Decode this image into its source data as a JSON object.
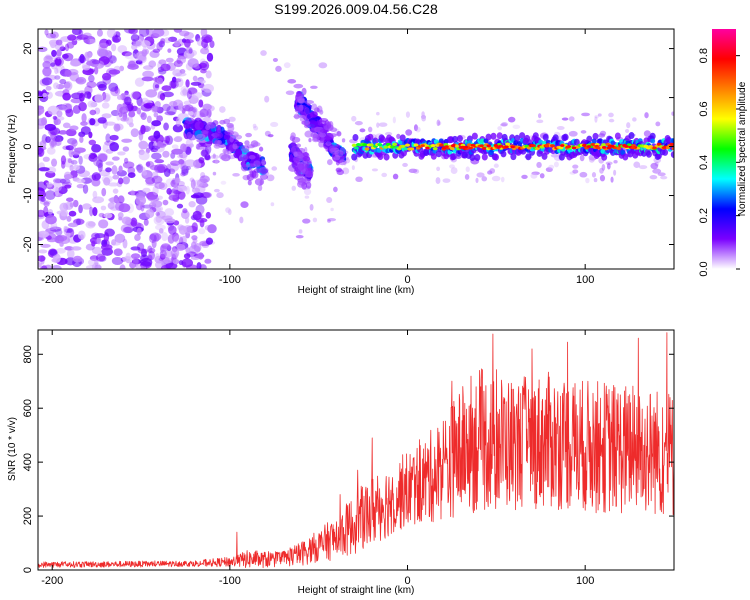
{
  "title": "S199.2026.009.04.56.C28",
  "chart_data": [
    {
      "type": "heatmap",
      "xlabel": "Height of straight line (km)",
      "ylabel": "Frequency (Hz)",
      "xlim": [
        -208,
        150
      ],
      "ylim": [
        -25,
        24
      ],
      "xticks": [
        -200,
        -100,
        0,
        100
      ],
      "yticks": [
        -20,
        -10,
        0,
        10,
        20
      ],
      "colorbar": {
        "label": "Normalized spectral amplitude",
        "range": [
          0,
          0.9
        ],
        "ticks": [
          "0.0",
          "0.2",
          "0.4",
          "0.6",
          "0.8"
        ],
        "tick_values": [
          0.0,
          0.2,
          0.4,
          0.6,
          0.8
        ],
        "colors": [
          "#ffffff",
          "#7a00ff",
          "#0000ff",
          "#00ffff",
          "#00ff00",
          "#ffff00",
          "#ff8000",
          "#ff0000",
          "#ff00a0"
        ]
      },
      "features": [
        {
          "description": "scattered noise",
          "x_range": [
            -208,
            -110
          ],
          "freq_range": [
            -25,
            24
          ]
        },
        {
          "description": "wavy arc",
          "points": [
            [
              -125,
              4
            ],
            [
              -110,
              3
            ],
            [
              -100,
              1
            ],
            [
              -90,
              -3
            ],
            [
              -80,
              -4
            ]
          ]
        },
        {
          "description": "second arc",
          "points": [
            [
              -62,
              10
            ],
            [
              -55,
              6
            ],
            [
              -48,
              3
            ],
            [
              -42,
              0
            ],
            [
              -36,
              -2
            ]
          ]
        },
        {
          "description": "hook",
          "points": [
            [
              -65,
              -1
            ],
            [
              -60,
              -4
            ],
            [
              -55,
              -5
            ]
          ]
        },
        {
          "description": "steady carrier",
          "x_range": [
            -30,
            150
          ],
          "freq": 0
        }
      ]
    },
    {
      "type": "line",
      "xlabel": "Height of straight line (km)",
      "ylabel": "SNR (10 * v/v)",
      "xlim": [
        -208,
        150
      ],
      "ylim": [
        0,
        890
      ],
      "xticks": [
        -200,
        -100,
        0,
        100
      ],
      "yticks": [
        0,
        200,
        400,
        600,
        800
      ],
      "color": "#ee2b2b",
      "envelope": {
        "x": [
          -208,
          -150,
          -120,
          -100,
          -90,
          -80,
          -70,
          -60,
          -50,
          -40,
          -30,
          -20,
          -10,
          0,
          10,
          20,
          30,
          40,
          60,
          80,
          100,
          120,
          140,
          150
        ],
        "mean": [
          20,
          22,
          24,
          30,
          40,
          38,
          42,
          60,
          90,
          120,
          170,
          220,
          260,
          300,
          330,
          380,
          440,
          480,
          470,
          480,
          460,
          450,
          440,
          420
        ],
        "spread": [
          15,
          15,
          15,
          25,
          45,
          40,
          40,
          60,
          80,
          110,
          150,
          180,
          180,
          190,
          220,
          260,
          320,
          360,
          330,
          340,
          330,
          330,
          320,
          320
        ],
        "peaks": [
          [
            -96,
            140
          ],
          [
            -38,
            280
          ],
          [
            -28,
            370
          ],
          [
            -20,
            490
          ],
          [
            25,
            700
          ],
          [
            48,
            875
          ],
          [
            70,
            820
          ],
          [
            90,
            845
          ],
          [
            130,
            860
          ],
          [
            146,
            880
          ]
        ]
      }
    }
  ]
}
